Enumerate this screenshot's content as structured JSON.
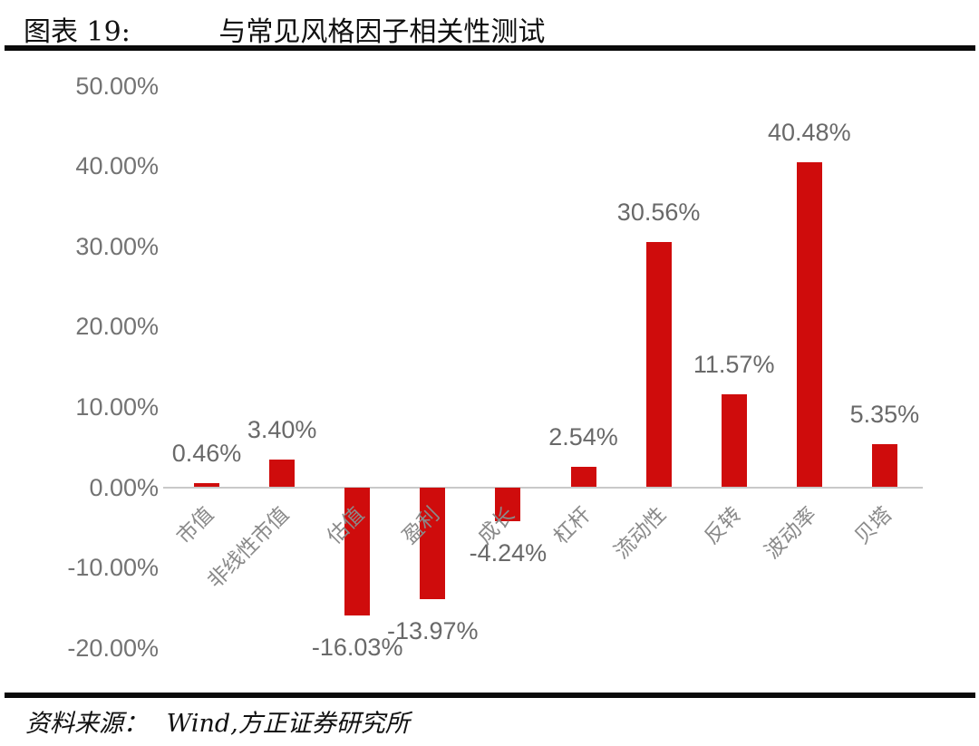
{
  "header": {
    "label": "图表 19:",
    "title": "与常见风格因子相关性测试"
  },
  "footer": {
    "source_label": "资料来源：",
    "source_value": "Wind,方正证券研究所"
  },
  "chart_data": {
    "type": "bar",
    "title": "与常见风格因子相关性测试",
    "xlabel": "",
    "ylabel": "",
    "unit": "percent",
    "categories": [
      "市值",
      "非线性市值",
      "估值",
      "盈利",
      "成长",
      "杠杆",
      "流动性",
      "反转",
      "波动率",
      "贝塔"
    ],
    "values": [
      0.46,
      3.4,
      -16.03,
      -13.97,
      -4.24,
      2.54,
      30.56,
      11.57,
      40.48,
      5.35
    ],
    "value_labels": [
      "0.46%",
      "3.40%",
      "-16.03%",
      "-13.97%",
      "-4.24%",
      "2.54%",
      "30.56%",
      "11.57%",
      "40.48%",
      "5.35%"
    ],
    "y_ticks": [
      {
        "value": 50,
        "label": "50.00%"
      },
      {
        "value": 40,
        "label": "40.00%"
      },
      {
        "value": 30,
        "label": "30.00%"
      },
      {
        "value": 20,
        "label": "20.00%"
      },
      {
        "value": 10,
        "label": "10.00%"
      },
      {
        "value": 0,
        "label": "0.00%"
      },
      {
        "value": -10,
        "label": "-10.00%"
      },
      {
        "value": -20,
        "label": "-20.00%"
      }
    ],
    "ylim": [
      -20,
      50
    ],
    "grid": false,
    "legend_position": "none",
    "colors": {
      "bar": "#CF0C0C",
      "axis_line": "#C9C9C9",
      "tick_text": "#737373",
      "value_label_text": "#696969",
      "category_text": "#8A8A8A"
    }
  }
}
